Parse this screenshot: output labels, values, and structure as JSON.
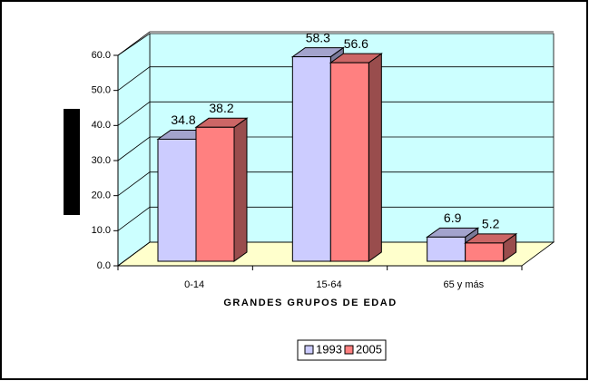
{
  "chart_data": {
    "type": "bar3d",
    "x_label": "GRANDES GRUPOS DE EDAD",
    "categories": [
      "0-14",
      "15-64",
      "65 y más"
    ],
    "series": [
      {
        "name": "1993",
        "color": "#ccccff",
        "values": [
          34.8,
          58.3,
          6.9
        ]
      },
      {
        "name": "2005",
        "color": "#ff8080",
        "values": [
          38.2,
          56.6,
          5.2
        ]
      }
    ],
    "ylim": [
      0,
      60
    ],
    "yticks": [
      {
        "value": 0,
        "label": "0.0"
      },
      {
        "value": 10,
        "label": "10.0"
      },
      {
        "value": 20,
        "label": "20.0"
      },
      {
        "value": 30,
        "label": "30.0"
      },
      {
        "value": 40,
        "label": "40.0"
      },
      {
        "value": 50,
        "label": "50.0"
      },
      {
        "value": 60,
        "label": "60.0"
      }
    ],
    "grid": true,
    "legend": "bottom"
  }
}
